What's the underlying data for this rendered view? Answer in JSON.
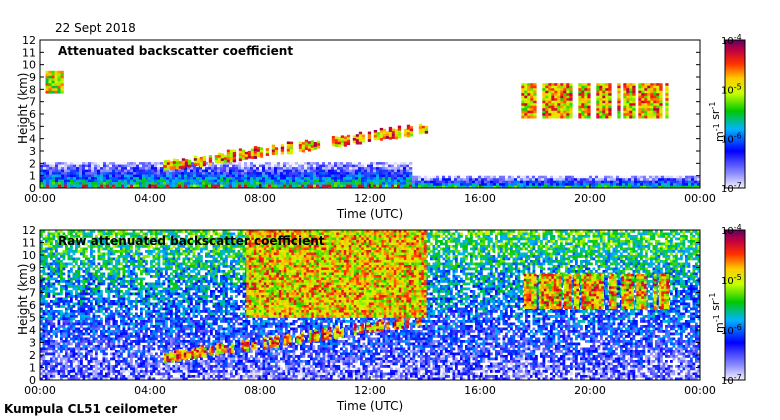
{
  "header": {
    "date": "22 Sept 2018"
  },
  "footer": {
    "station": "Kumpula CL51 ceilometer"
  },
  "colors": {
    "frame": "#000000",
    "background": "#ffffff"
  },
  "chart_data": [
    {
      "type": "heatmap",
      "title": "Attenuated backscatter coefficient",
      "xlabel": "Time (UTC)",
      "ylabel": "Height (km)",
      "x_ticks": [
        "00:00",
        "04:00",
        "08:00",
        "12:00",
        "16:00",
        "20:00",
        "00:00"
      ],
      "x_tick_hours": [
        0,
        4,
        8,
        12,
        16,
        20,
        24
      ],
      "y_ticks": [
        0,
        1,
        2,
        3,
        4,
        5,
        6,
        7,
        8,
        9,
        10,
        11,
        12
      ],
      "xlim": [
        0,
        24
      ],
      "ylim": [
        0,
        12
      ],
      "colorbar": {
        "label": "m-1 sr-1",
        "tick_labels": [
          "10-4",
          "10-5",
          "10-6",
          "10-7"
        ],
        "log_range": [
          -7,
          -4
        ]
      },
      "features": [
        {
          "name": "boundary_layer",
          "start_h": 0,
          "end_h": 24,
          "base_km": 0,
          "top_km": 2.2,
          "level": -6.3
        },
        {
          "name": "early_cirrus",
          "start_h": 0.2,
          "end_h": 0.8,
          "base_km": 7.8,
          "top_km": 9.5,
          "level": -5.0
        },
        {
          "name": "rising_cloud_layer",
          "start_h": 4.5,
          "end_h": 14.0,
          "base_km": 1.5,
          "top_km": 5.5,
          "level": -4.7
        },
        {
          "name": "evening_cirrus",
          "start_h": 17.5,
          "end_h": 22.8,
          "base_km": 5.8,
          "top_km": 8.5,
          "level": -4.8
        }
      ]
    },
    {
      "type": "heatmap",
      "title": "Raw attenuated backscatter coefficient",
      "xlabel": "Time (UTC)",
      "ylabel": "Height (km)",
      "x_ticks": [
        "00:00",
        "04:00",
        "08:00",
        "12:00",
        "16:00",
        "20:00",
        "00:00"
      ],
      "x_tick_hours": [
        0,
        4,
        8,
        12,
        16,
        20,
        24
      ],
      "y_ticks": [
        0,
        1,
        2,
        3,
        4,
        5,
        6,
        7,
        8,
        9,
        10,
        11,
        12
      ],
      "xlim": [
        0,
        24
      ],
      "ylim": [
        0,
        12
      ],
      "colorbar": {
        "label": "m-1 sr-1",
        "tick_labels": [
          "10-4",
          "10-5",
          "10-6",
          "10-7"
        ],
        "log_range": [
          -7,
          -4
        ]
      },
      "features": [
        {
          "name": "noise_background",
          "start_h": 0,
          "end_h": 24,
          "base_km": 0,
          "top_km": 12,
          "level": -5.8
        },
        {
          "name": "daytime_noise_peak",
          "start_h": 7.5,
          "end_h": 14.0,
          "base_km": 5,
          "top_km": 12,
          "level": -5.0
        },
        {
          "name": "rising_cloud_layer",
          "start_h": 4.5,
          "end_h": 14.0,
          "base_km": 1.5,
          "top_km": 5.5,
          "level": -4.7
        },
        {
          "name": "evening_cirrus",
          "start_h": 17.5,
          "end_h": 22.8,
          "base_km": 5.8,
          "top_km": 8.5,
          "level": -4.8
        }
      ]
    }
  ]
}
